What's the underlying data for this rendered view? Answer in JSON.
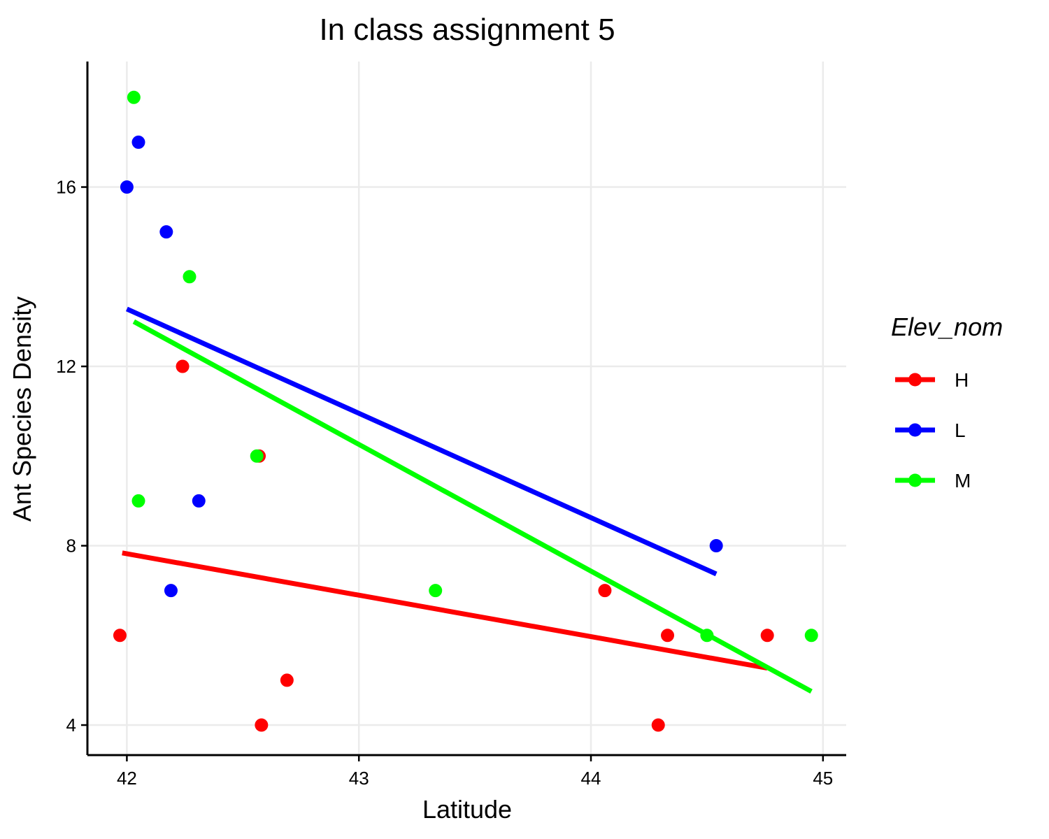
{
  "chart_data": {
    "type": "scatter",
    "title": "In class assignment 5",
    "xlabel": "Latitude",
    "ylabel": "Ant Species Density",
    "xlim": [
      41.83,
      45.1
    ],
    "ylim": [
      3.33,
      18.8
    ],
    "xticks": [
      42,
      43,
      44,
      45
    ],
    "yticks": [
      4,
      8,
      12,
      16
    ],
    "grid": true,
    "legend": {
      "title": "Elev_nom",
      "position": "right",
      "entries": [
        "H",
        "L",
        "M"
      ]
    },
    "series": [
      {
        "name": "H",
        "color": "#ff0000",
        "points": [
          {
            "x": 41.97,
            "y": 6
          },
          {
            "x": 42.24,
            "y": 12
          },
          {
            "x": 42.57,
            "y": 10
          },
          {
            "x": 42.58,
            "y": 4
          },
          {
            "x": 42.69,
            "y": 5
          },
          {
            "x": 44.06,
            "y": 7
          },
          {
            "x": 44.29,
            "y": 4
          },
          {
            "x": 44.33,
            "y": 6
          },
          {
            "x": 44.76,
            "y": 6
          }
        ],
        "fit": {
          "x": [
            41.98,
            44.76
          ],
          "y": [
            7.84,
            5.27
          ]
        }
      },
      {
        "name": "L",
        "color": "#0000ff",
        "points": [
          {
            "x": 42.0,
            "y": 16
          },
          {
            "x": 42.05,
            "y": 17
          },
          {
            "x": 42.17,
            "y": 15
          },
          {
            "x": 42.19,
            "y": 7
          },
          {
            "x": 42.31,
            "y": 9
          },
          {
            "x": 44.54,
            "y": 8
          }
        ],
        "fit": {
          "x": [
            42.0,
            44.54
          ],
          "y": [
            13.28,
            7.37
          ]
        }
      },
      {
        "name": "M",
        "color": "#00ff00",
        "points": [
          {
            "x": 42.03,
            "y": 18
          },
          {
            "x": 42.05,
            "y": 9
          },
          {
            "x": 42.27,
            "y": 14
          },
          {
            "x": 42.56,
            "y": 10
          },
          {
            "x": 43.33,
            "y": 7
          },
          {
            "x": 44.5,
            "y": 6
          },
          {
            "x": 44.95,
            "y": 6
          }
        ],
        "fit": {
          "x": [
            42.03,
            44.95
          ],
          "y": [
            13.0,
            4.75
          ]
        }
      }
    ]
  }
}
